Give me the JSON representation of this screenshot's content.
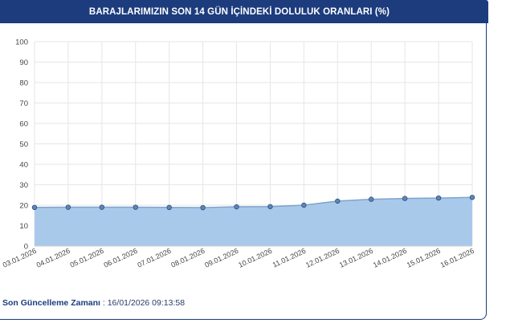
{
  "header": {
    "title": "BARAJLARIMIZIN SON 14 GÜN İÇİNDEKİ DOLULUK ORANLARI (%)"
  },
  "footer": {
    "label": "Son Güncelleme Zamanı",
    "separator": " : ",
    "value": "16/01/2026 09:13:58"
  },
  "colors": {
    "header_bg": "#1c3c7d",
    "area_fill": "#a9c9eb",
    "line": "#7ea4cc",
    "marker_fill": "#5e86b8",
    "marker_stroke": "#2d4d7a",
    "grid": "#e6e6e6"
  },
  "chart_data": {
    "type": "area",
    "title": "BARAJLARIMIZIN SON 14 GÜN İÇİNDEKİ DOLULUK ORANLARI (%)",
    "xlabel": "",
    "ylabel": "",
    "ylim": [
      0,
      100
    ],
    "yticks": [
      0,
      10,
      20,
      30,
      40,
      50,
      60,
      70,
      80,
      90,
      100
    ],
    "grid": true,
    "legend": "none",
    "x": [
      "03.01.2026",
      "04.01.2026",
      "05.01.2026",
      "06.01.2026",
      "07.01.2026",
      "08.01.2026",
      "09.01.2026",
      "10.01.2026",
      "11.01.2026",
      "12.01.2026",
      "13.01.2026",
      "14.01.2026",
      "15.01.2026",
      "16.01.2026"
    ],
    "series": [
      {
        "values": [
          18.9,
          19.0,
          19.0,
          19.0,
          18.9,
          18.8,
          19.2,
          19.3,
          20.0,
          22.0,
          22.9,
          23.3,
          23.5,
          23.8
        ]
      }
    ]
  }
}
